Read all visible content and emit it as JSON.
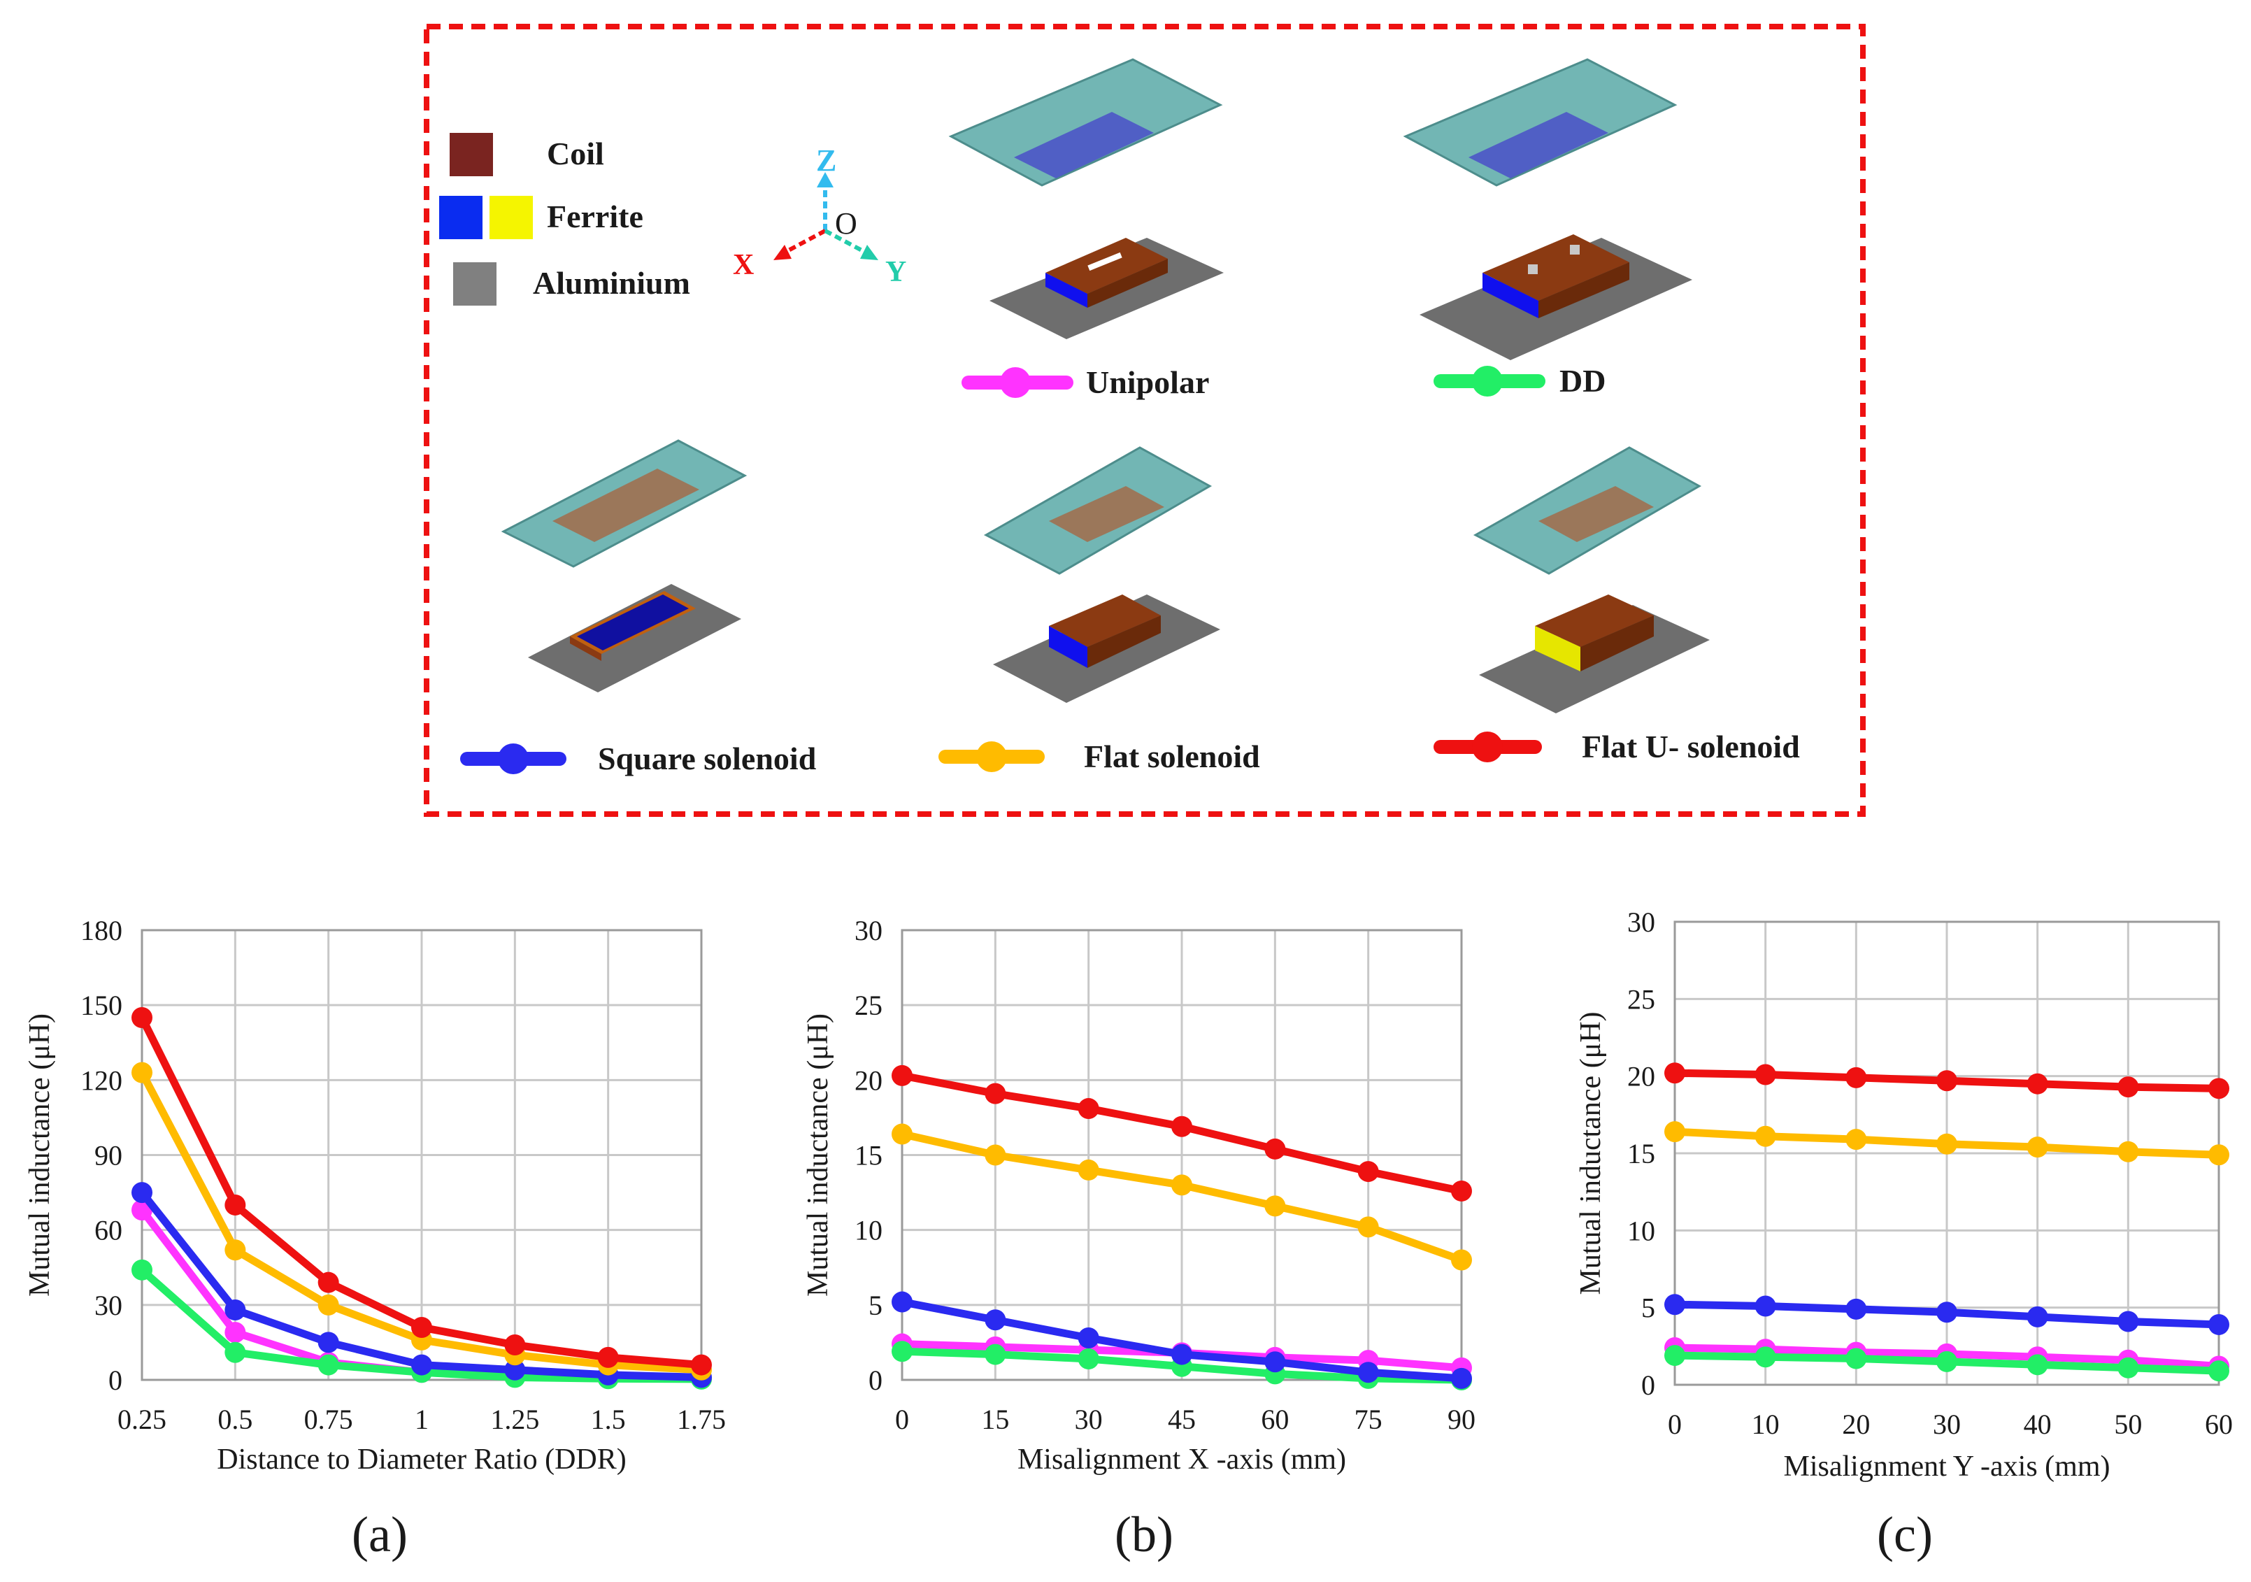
{
  "legend": {
    "materials": [
      {
        "label": "Coil",
        "colors": [
          "#7a2420"
        ]
      },
      {
        "label": "Ferrite",
        "colors": [
          "#0a2cf0",
          "#f5f500"
        ]
      },
      {
        "label": "Aluminium",
        "colors": [
          "#808080"
        ]
      }
    ],
    "axes": {
      "x": "X",
      "y": "Y",
      "z": "Z",
      "origin": "O"
    },
    "topologies": [
      {
        "label": "Unipolar",
        "color": "#ff33ff"
      },
      {
        "label": "DD",
        "color": "#22ee66"
      },
      {
        "label": "Square solenoid",
        "color": "#2a2af0"
      },
      {
        "label": "Flat solenoid",
        "color": "#ffbb00"
      },
      {
        "label": "Flat U- solenoid",
        "color": "#ee1111"
      }
    ]
  },
  "colors": {
    "frame": "#ee1111",
    "plate": "#5aaaa8",
    "coil": "#8b3a12",
    "coil_top": "#9b4a1a",
    "ferrite_blue": "#1010ee",
    "ferrite_yellow": "#e6e600",
    "aluminium": "#6e6e6e"
  },
  "chart_data": [
    {
      "type": "line",
      "caption": "(a)",
      "xlabel": "Distance to Diameter Ratio (DDR)",
      "ylabel": "Mutual inductance (μH)",
      "categories": [
        "0.25",
        "0.5",
        "0.75",
        "1",
        "1.25",
        "1.5",
        "1.75"
      ],
      "ylim": [
        0,
        180
      ],
      "yticks": [
        0,
        30,
        60,
        90,
        120,
        150,
        180
      ],
      "series": [
        {
          "name": "Unipolar",
          "color": "#ff33ff",
          "values": [
            68,
            19,
            7,
            3,
            1.5,
            1,
            0.5
          ]
        },
        {
          "name": "DD",
          "color": "#22ee66",
          "values": [
            44,
            11,
            6,
            3,
            1,
            0.5,
            0.3
          ]
        },
        {
          "name": "Square solenoid",
          "color": "#2a2af0",
          "values": [
            75,
            28,
            15,
            6,
            4,
            2,
            1
          ]
        },
        {
          "name": "Flat solenoid",
          "color": "#ffbb00",
          "values": [
            123,
            52,
            30,
            16,
            10,
            6,
            4
          ]
        },
        {
          "name": "Flat U- solenoid",
          "color": "#ee1111",
          "values": [
            145,
            70,
            39,
            21,
            14,
            9,
            6
          ]
        }
      ]
    },
    {
      "type": "line",
      "caption": "(b)",
      "xlabel": "Misalignment X -axis  (mm)",
      "ylabel": "Mutual inductance (μH)",
      "categories": [
        "0",
        "15",
        "30",
        "45",
        "60",
        "75",
        "90"
      ],
      "ylim": [
        0,
        30
      ],
      "yticks": [
        0,
        5,
        10,
        15,
        20,
        25,
        30
      ],
      "series": [
        {
          "name": "Unipolar",
          "color": "#ff33ff",
          "values": [
            2.4,
            2.2,
            2.0,
            1.8,
            1.5,
            1.3,
            0.8
          ]
        },
        {
          "name": "DD",
          "color": "#22ee66",
          "values": [
            1.9,
            1.7,
            1.4,
            0.9,
            0.4,
            0.1,
            0.0
          ]
        },
        {
          "name": "Square solenoid",
          "color": "#2a2af0",
          "values": [
            5.2,
            4.0,
            2.8,
            1.7,
            1.2,
            0.5,
            0.1
          ]
        },
        {
          "name": "Flat solenoid",
          "color": "#ffbb00",
          "values": [
            16.4,
            15.0,
            14.0,
            13.0,
            11.6,
            10.2,
            8.0
          ]
        },
        {
          "name": "Flat U- solenoid",
          "color": "#ee1111",
          "values": [
            20.3,
            19.1,
            18.1,
            16.9,
            15.4,
            13.9,
            12.6
          ]
        }
      ]
    },
    {
      "type": "line",
      "caption": "(c)",
      "xlabel": "Misalignment Y -axis (mm)",
      "ylabel": "Mutual inductance (μH)",
      "categories": [
        "0",
        "10",
        "20",
        "30",
        "40",
        "50",
        "60"
      ],
      "ylim": [
        0,
        30
      ],
      "yticks": [
        0,
        5,
        10,
        15,
        20,
        25,
        30
      ],
      "series": [
        {
          "name": "Unipolar",
          "color": "#ff33ff",
          "values": [
            2.4,
            2.3,
            2.1,
            2.0,
            1.8,
            1.6,
            1.2
          ]
        },
        {
          "name": "DD",
          "color": "#22ee66",
          "values": [
            1.9,
            1.8,
            1.7,
            1.5,
            1.3,
            1.1,
            0.9
          ]
        },
        {
          "name": "Square solenoid",
          "color": "#2a2af0",
          "values": [
            5.2,
            5.1,
            4.9,
            4.7,
            4.4,
            4.1,
            3.9
          ]
        },
        {
          "name": "Flat solenoid",
          "color": "#ffbb00",
          "values": [
            16.4,
            16.1,
            15.9,
            15.6,
            15.4,
            15.1,
            14.9
          ]
        },
        {
          "name": "Flat U- solenoid",
          "color": "#ee1111",
          "values": [
            20.2,
            20.1,
            19.9,
            19.7,
            19.5,
            19.3,
            19.2
          ]
        }
      ]
    }
  ]
}
